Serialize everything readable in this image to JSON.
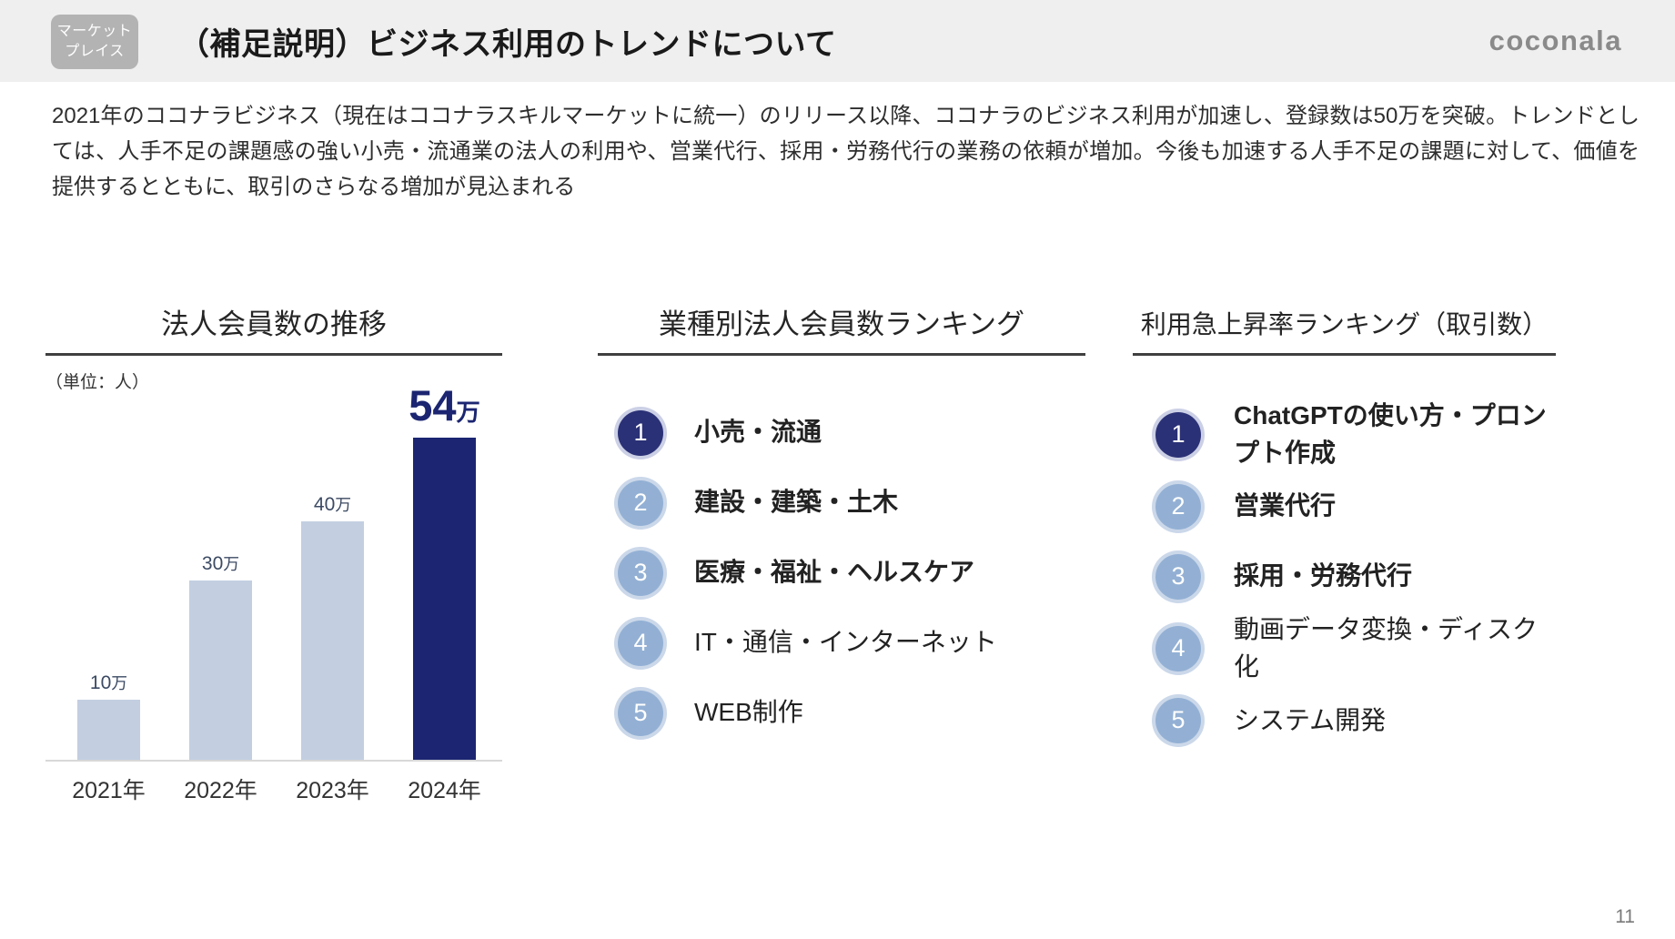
{
  "header": {
    "badge": {
      "line1": "マーケット",
      "line2": "プレイス"
    },
    "title": "（補足説明）ビジネス利用のトレンドについて",
    "logo": "coconala"
  },
  "intro": "2021年のココナラビジネス（現在はココナラスキルマーケットに統一）のリリース以降、ココナラのビジネス利用が加速し、登録数は50万を突破。トレンドとしては、人手不足の課題感の強い小売・流通業の法人の利用や、営業代行、採用・労務代行の業務の依頼が増加。今後も加速する人手不足の課題に対して、価値を提供するとともに、取引のさらなる増加が見込まれる",
  "chart_data": {
    "type": "bar",
    "title": "法人会員数の推移",
    "unit_label": "（単位：人）",
    "categories": [
      "2021年",
      "2022年",
      "2023年",
      "2024年"
    ],
    "values": [
      100000,
      300000,
      400000,
      540000
    ],
    "value_labels": [
      {
        "number": "10",
        "unit": "万",
        "highlight": false
      },
      {
        "number": "30",
        "unit": "万",
        "highlight": false
      },
      {
        "number": "40",
        "unit": "万",
        "highlight": false
      },
      {
        "number": "54",
        "unit": "万",
        "highlight": true
      }
    ],
    "highlight_index": 3,
    "ylim": [
      0,
      540000
    ],
    "grid": false,
    "legend": "none",
    "colors": {
      "bar": "#c3cee1",
      "highlight_bar": "#1b2571",
      "value_text": "#3c4a63",
      "highlight_value_text": "#1b2571"
    }
  },
  "ranking_industry": {
    "title": "業種別法人会員数ランキング",
    "items": [
      {
        "rank": "1",
        "label": "小売・流通",
        "bold": true,
        "highlight": true
      },
      {
        "rank": "2",
        "label": "建設・建築・土木",
        "bold": true,
        "highlight": false
      },
      {
        "rank": "3",
        "label": "医療・福祉・ヘルスケア",
        "bold": true,
        "highlight": false
      },
      {
        "rank": "4",
        "label": "IT・通信・インターネット",
        "bold": false,
        "highlight": false
      },
      {
        "rank": "5",
        "label": "WEB制作",
        "bold": false,
        "highlight": false
      }
    ]
  },
  "ranking_growth": {
    "title": "利用急上昇率ランキング（取引数）",
    "items": [
      {
        "rank": "1",
        "label": "ChatGPTの使い方・プロンプト作成",
        "bold": true,
        "highlight": true
      },
      {
        "rank": "2",
        "label": "営業代行",
        "bold": true,
        "highlight": false
      },
      {
        "rank": "3",
        "label": "採用・労務代行",
        "bold": true,
        "highlight": false
      },
      {
        "rank": "4",
        "label": "動画データ変換・ディスク化",
        "bold": false,
        "highlight": false
      },
      {
        "rank": "5",
        "label": "システム開発",
        "bold": false,
        "highlight": false
      }
    ]
  },
  "page_number": "11",
  "colors": {
    "header_band": "#efefef",
    "badge_gray": "#b3b3b3",
    "navy": "#1b2571",
    "badge_navy": "#2b3176",
    "light_bar": "#c3cee1",
    "light_badge": "#93b0d4",
    "underline": "#3f3f3f",
    "logo_gray": "#8a8a8a"
  }
}
